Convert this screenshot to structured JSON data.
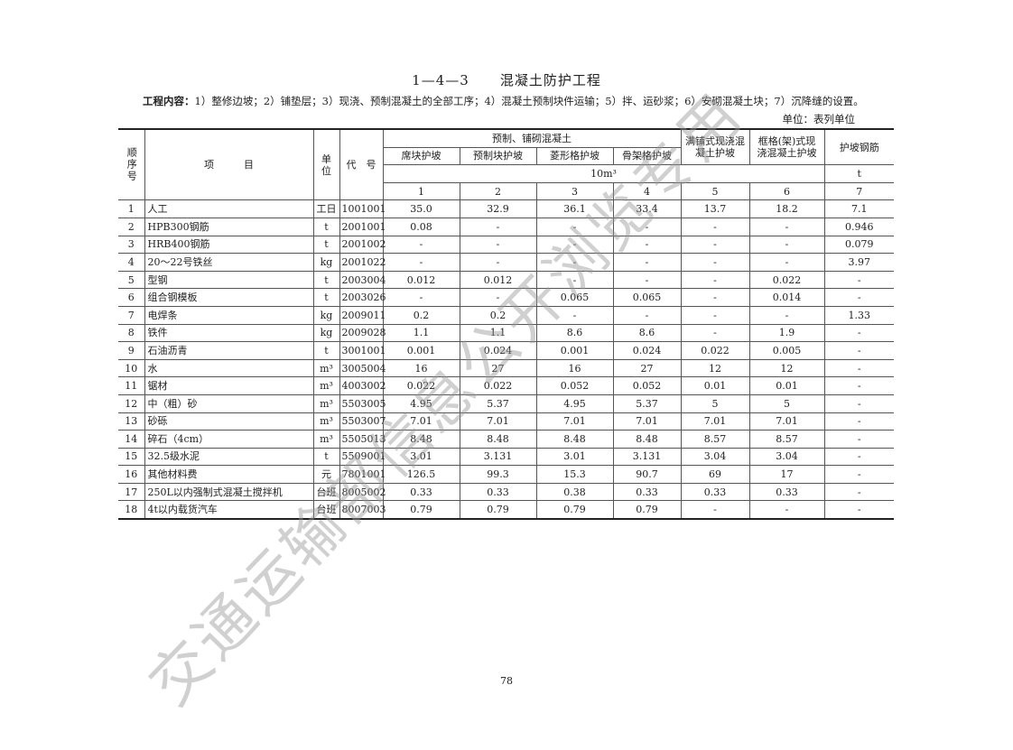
{
  "title": {
    "number": "1—4—3",
    "text": "混凝土防护工程"
  },
  "content": {
    "label": "工程内容：",
    "text": "1）整修边坡；2）铺垫层；3）现浇、预制混凝土的全部工序；4）混凝土预制块件运输；5）拌、运砂浆；6）安砌混凝土块；7）沉降缝的设置。"
  },
  "unit_note": "单位：表列单位",
  "header": {
    "seq": "顺序号",
    "item": "项　　　目",
    "unit": "单位",
    "code": "代　号",
    "group1": "预制、铺砌混凝土",
    "cols": [
      "席块护坡",
      "预制块护坡",
      "菱形格护坡",
      "骨架格护坡",
      "满铺式现浇混凝土护坡",
      "框格(架)式现浇混凝土护坡",
      "护坡钢筋"
    ],
    "unit_row_1": "10m³",
    "unit_row_2": "t",
    "col_numbers": [
      "1",
      "2",
      "3",
      "4",
      "5",
      "6",
      "7"
    ]
  },
  "rows": [
    {
      "seq": "1",
      "item": "人工",
      "unit": "工日",
      "code": "1001001",
      "values": [
        "35.0",
        "32.9",
        "36.1",
        "33.4",
        "13.7",
        "18.2",
        "7.1"
      ]
    },
    {
      "seq": "2",
      "item": "HPB300钢筋",
      "unit": "t",
      "code": "2001001",
      "values": [
        "0.08",
        "-",
        "-",
        "-",
        "-",
        "-",
        "0.946"
      ]
    },
    {
      "seq": "3",
      "item": "HRB400钢筋",
      "unit": "t",
      "code": "2001002",
      "values": [
        "-",
        "-",
        "-",
        "-",
        "-",
        "-",
        "0.079"
      ]
    },
    {
      "seq": "4",
      "item": "20～22号铁丝",
      "unit": "kg",
      "code": "2001022",
      "values": [
        "-",
        "-",
        "-",
        "-",
        "-",
        "-",
        "3.97"
      ]
    },
    {
      "seq": "5",
      "item": "型钢",
      "unit": "t",
      "code": "2003004",
      "values": [
        "0.012",
        "0.012",
        "-",
        "-",
        "-",
        "0.022",
        "-"
      ]
    },
    {
      "seq": "6",
      "item": "组合钢模板",
      "unit": "t",
      "code": "2003026",
      "values": [
        "-",
        "-",
        "0.065",
        "0.065",
        "-",
        "0.014",
        "-"
      ]
    },
    {
      "seq": "7",
      "item": "电焊条",
      "unit": "kg",
      "code": "2009011",
      "values": [
        "0.2",
        "0.2",
        "-",
        "-",
        "-",
        "-",
        "1.33"
      ]
    },
    {
      "seq": "8",
      "item": "铁件",
      "unit": "kg",
      "code": "2009028",
      "values": [
        "1.1",
        "1.1",
        "8.6",
        "8.6",
        "-",
        "1.9",
        "-"
      ]
    },
    {
      "seq": "9",
      "item": "石油沥青",
      "unit": "t",
      "code": "3001001",
      "values": [
        "0.001",
        "0.024",
        "0.001",
        "0.024",
        "0.022",
        "0.005",
        "-"
      ]
    },
    {
      "seq": "10",
      "item": "水",
      "unit": "m³",
      "code": "3005004",
      "values": [
        "16",
        "27",
        "16",
        "27",
        "12",
        "12",
        "-"
      ]
    },
    {
      "seq": "11",
      "item": "锯材",
      "unit": "m³",
      "code": "4003002",
      "values": [
        "0.022",
        "0.022",
        "0.052",
        "0.052",
        "0.01",
        "0.01",
        "-"
      ]
    },
    {
      "seq": "12",
      "item": "中（粗）砂",
      "unit": "m³",
      "code": "5503005",
      "values": [
        "4.95",
        "5.37",
        "4.95",
        "5.37",
        "5",
        "5",
        "-"
      ]
    },
    {
      "seq": "13",
      "item": "砂砾",
      "unit": "m³",
      "code": "5503007",
      "values": [
        "7.01",
        "7.01",
        "7.01",
        "7.01",
        "7.01",
        "7.01",
        "-"
      ]
    },
    {
      "seq": "14",
      "item": "碎石（4cm）",
      "unit": "m³",
      "code": "5505013",
      "values": [
        "8.48",
        "8.48",
        "8.48",
        "8.48",
        "8.57",
        "8.57",
        "-"
      ]
    },
    {
      "seq": "15",
      "item": "32.5级水泥",
      "unit": "t",
      "code": "5509001",
      "values": [
        "3.01",
        "3.131",
        "3.01",
        "3.131",
        "3.04",
        "3.04",
        "-"
      ]
    },
    {
      "seq": "16",
      "item": "其他材料费",
      "unit": "元",
      "code": "7801001",
      "values": [
        "126.5",
        "99.3",
        "15.3",
        "90.7",
        "69",
        "17",
        "-"
      ]
    },
    {
      "seq": "17",
      "item": "250L以内强制式混凝土搅拌机",
      "unit": "台班",
      "code": "8005002",
      "values": [
        "0.33",
        "0.33",
        "0.38",
        "0.33",
        "0.33",
        "0.33",
        "-"
      ]
    },
    {
      "seq": "18",
      "item": "4t以内载货汽车",
      "unit": "台班",
      "code": "8007003",
      "values": [
        "0.79",
        "0.79",
        "0.79",
        "0.79",
        "-",
        "-",
        "-"
      ]
    }
  ],
  "page_number": "78",
  "watermark": "交通运输部信息公开浏览专用"
}
